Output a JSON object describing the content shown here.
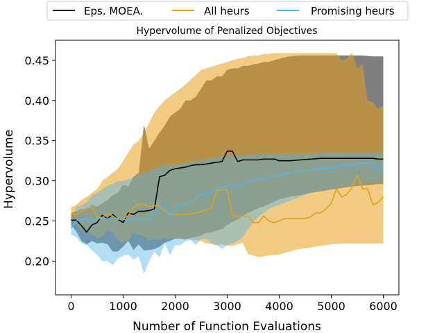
{
  "chart_data": {
    "type": "line",
    "title": "Hypervolume of Penalized Objectives",
    "xlabel": "Number of Function Evaluations",
    "ylabel": "Hypervolume",
    "xlim": [
      -300,
      6300
    ],
    "ylim": [
      0.158,
      0.475
    ],
    "xticks": [
      0,
      1000,
      2000,
      3000,
      4000,
      5000,
      6000
    ],
    "yticks": [
      0.2,
      0.25,
      0.3,
      0.35,
      0.4,
      0.45
    ],
    "xtick_labels": [
      "0",
      "1000",
      "2000",
      "3000",
      "4000",
      "5000",
      "6000"
    ],
    "ytick_labels": [
      "0.20",
      "0.25",
      "0.30",
      "0.35",
      "0.40",
      "0.45"
    ],
    "legend": {
      "position": "top-center-outside",
      "columns": 3
    },
    "grid": false,
    "series": [
      {
        "name": "Eps. MOEA.",
        "color": "#000000",
        "band_color": "#000000",
        "band_opacity": 0.5,
        "x": [
          0,
          100,
          200,
          300,
          400,
          500,
          600,
          700,
          800,
          900,
          1000,
          1100,
          1200,
          1300,
          1400,
          1500,
          1600,
          1700,
          1800,
          1900,
          2000,
          2100,
          2200,
          2300,
          2400,
          2500,
          2600,
          2700,
          2800,
          2900,
          3000,
          3100,
          3200,
          3300,
          3400,
          3500,
          3600,
          3700,
          3800,
          3900,
          4000,
          4200,
          4400,
          4600,
          4800,
          5000,
          5200,
          5400,
          5600,
          5800,
          5900,
          6000
        ],
        "mean": [
          0.251,
          0.251,
          0.244,
          0.236,
          0.245,
          0.248,
          0.257,
          0.253,
          0.258,
          0.252,
          0.248,
          0.26,
          0.258,
          0.262,
          0.262,
          0.263,
          0.265,
          0.305,
          0.307,
          0.313,
          0.315,
          0.316,
          0.317,
          0.319,
          0.32,
          0.32,
          0.321,
          0.322,
          0.323,
          0.324,
          0.337,
          0.337,
          0.324,
          0.326,
          0.326,
          0.326,
          0.326,
          0.327,
          0.327,
          0.327,
          0.325,
          0.325,
          0.326,
          0.327,
          0.328,
          0.328,
          0.328,
          0.328,
          0.328,
          0.328,
          0.327,
          0.327
        ],
        "lower": [
          0.245,
          0.237,
          0.225,
          0.221,
          0.225,
          0.222,
          0.223,
          0.221,
          0.212,
          0.212,
          0.218,
          0.225,
          0.214,
          0.221,
          0.213,
          0.214,
          0.215,
          0.218,
          0.223,
          0.225,
          0.228,
          0.228,
          0.227,
          0.229,
          0.23,
          0.232,
          0.235,
          0.236,
          0.238,
          0.24,
          0.245,
          0.249,
          0.252,
          0.256,
          0.26,
          0.263,
          0.266,
          0.268,
          0.271,
          0.274,
          0.277,
          0.28,
          0.282,
          0.285,
          0.287,
          0.289,
          0.291,
          0.293,
          0.294,
          0.295,
          0.296,
          0.296
        ],
        "upper": [
          0.26,
          0.262,
          0.265,
          0.265,
          0.27,
          0.268,
          0.272,
          0.276,
          0.282,
          0.285,
          0.295,
          0.293,
          0.305,
          0.31,
          0.37,
          0.34,
          0.35,
          0.36,
          0.369,
          0.38,
          0.385,
          0.39,
          0.4,
          0.4,
          0.405,
          0.415,
          0.425,
          0.425,
          0.43,
          0.43,
          0.438,
          0.44,
          0.44,
          0.443,
          0.443,
          0.445,
          0.446,
          0.448,
          0.448,
          0.45,
          0.452,
          0.455,
          0.456,
          0.456,
          0.456,
          0.456,
          0.456,
          0.456,
          0.456,
          0.455,
          0.455,
          0.455
        ]
      },
      {
        "name": "All heurs",
        "color": "#e5a01e",
        "band_color": "#e5a01e",
        "band_opacity": 0.55,
        "x": [
          0,
          100,
          200,
          300,
          400,
          500,
          600,
          700,
          800,
          900,
          1000,
          1100,
          1200,
          1300,
          1400,
          1500,
          1600,
          1700,
          1800,
          1900,
          2000,
          2200,
          2400,
          2500,
          2600,
          2700,
          2800,
          2900,
          3000,
          3100,
          3200,
          3300,
          3400,
          3500,
          3600,
          3700,
          3800,
          3900,
          4000,
          4100,
          4200,
          4300,
          4400,
          4500,
          4600,
          4700,
          4800,
          4900,
          5000,
          5100,
          5200,
          5300,
          5400,
          5500,
          5600,
          5700,
          5800,
          5900,
          6000
        ],
        "mean": [
          0.259,
          0.258,
          0.262,
          0.266,
          0.267,
          0.255,
          0.254,
          0.259,
          0.256,
          0.252,
          0.253,
          0.257,
          0.267,
          0.271,
          0.27,
          0.268,
          0.269,
          0.268,
          0.263,
          0.259,
          0.258,
          0.258,
          0.26,
          0.262,
          0.264,
          0.266,
          0.288,
          0.289,
          0.289,
          0.257,
          0.256,
          0.256,
          0.256,
          0.248,
          0.248,
          0.256,
          0.25,
          0.248,
          0.25,
          0.253,
          0.253,
          0.253,
          0.253,
          0.253,
          0.255,
          0.26,
          0.26,
          0.265,
          0.272,
          0.29,
          0.28,
          0.283,
          0.292,
          0.307,
          0.29,
          0.29,
          0.27,
          0.273,
          0.28
        ],
        "lower": [
          0.252,
          0.246,
          0.238,
          0.236,
          0.234,
          0.228,
          0.231,
          0.238,
          0.236,
          0.226,
          0.222,
          0.225,
          0.235,
          0.233,
          0.231,
          0.226,
          0.228,
          0.226,
          0.229,
          0.228,
          0.228,
          0.228,
          0.226,
          0.225,
          0.222,
          0.221,
          0.22,
          0.221,
          0.219,
          0.219,
          0.221,
          0.223,
          0.209,
          0.207,
          0.205,
          0.206,
          0.207,
          0.208,
          0.208,
          0.21,
          0.212,
          0.214,
          0.215,
          0.216,
          0.217,
          0.218,
          0.219,
          0.22,
          0.221,
          0.221,
          0.222,
          0.222,
          0.222,
          0.222,
          0.222,
          0.222,
          0.222,
          0.222,
          0.222
        ],
        "upper": [
          0.267,
          0.27,
          0.276,
          0.28,
          0.285,
          0.29,
          0.3,
          0.305,
          0.31,
          0.315,
          0.325,
          0.335,
          0.345,
          0.35,
          0.36,
          0.372,
          0.385,
          0.393,
          0.4,
          0.405,
          0.41,
          0.42,
          0.432,
          0.438,
          0.44,
          0.442,
          0.444,
          0.446,
          0.448,
          0.45,
          0.452,
          0.453,
          0.455,
          0.456,
          0.456,
          0.458,
          0.458,
          0.459,
          0.459,
          0.459,
          0.459,
          0.459,
          0.459,
          0.459,
          0.459,
          0.459,
          0.459,
          0.459,
          0.459,
          0.459,
          0.45,
          0.452,
          0.46,
          0.44,
          0.445,
          0.4,
          0.398,
          0.39,
          0.393
        ]
      },
      {
        "name": "Promising heurs",
        "color": "#56b4e9",
        "band_color": "#56b4e9",
        "band_opacity": 0.45,
        "x": [
          0,
          100,
          200,
          300,
          400,
          500,
          600,
          700,
          800,
          900,
          1000,
          1100,
          1200,
          1300,
          1400,
          1500,
          1600,
          1700,
          1800,
          1900,
          2000,
          2100,
          2200,
          2300,
          2400,
          2500,
          2600,
          2700,
          2800,
          2900,
          3000,
          3100,
          3200,
          3300,
          3400,
          3500,
          3600,
          3700,
          3800,
          3900,
          4000,
          4200,
          4400,
          4600,
          4800,
          5000,
          5200,
          5400,
          5600,
          5800,
          5900,
          6000
        ],
        "mean": [
          0.241,
          0.25,
          0.252,
          0.252,
          0.248,
          0.253,
          0.253,
          0.253,
          0.253,
          0.253,
          0.252,
          0.252,
          0.253,
          0.25,
          0.253,
          0.251,
          0.26,
          0.265,
          0.27,
          0.255,
          0.266,
          0.27,
          0.27,
          0.275,
          0.278,
          0.283,
          0.283,
          0.286,
          0.29,
          0.292,
          0.293,
          0.296,
          0.293,
          0.297,
          0.3,
          0.301,
          0.302,
          0.303,
          0.306,
          0.306,
          0.307,
          0.31,
          0.312,
          0.313,
          0.315,
          0.316,
          0.318,
          0.32,
          0.322,
          0.322,
          0.314,
          0.321
        ],
        "lower": [
          0.233,
          0.23,
          0.222,
          0.22,
          0.214,
          0.208,
          0.2,
          0.2,
          0.195,
          0.203,
          0.207,
          0.208,
          0.202,
          0.206,
          0.184,
          0.2,
          0.212,
          0.205,
          0.222,
          0.207,
          0.22,
          0.22,
          0.225,
          0.226,
          0.22,
          0.228,
          0.228,
          0.222,
          0.22,
          0.215,
          0.22,
          0.222,
          0.225,
          0.23,
          0.24,
          0.248,
          0.255,
          0.26,
          0.265,
          0.268,
          0.27,
          0.275,
          0.28,
          0.285,
          0.288,
          0.29,
          0.292,
          0.294,
          0.296,
          0.298,
          0.298,
          0.3
        ],
        "upper": [
          0.247,
          0.268,
          0.27,
          0.273,
          0.282,
          0.285,
          0.29,
          0.294,
          0.296,
          0.3,
          0.3,
          0.302,
          0.305,
          0.308,
          0.31,
          0.312,
          0.315,
          0.318,
          0.32,
          0.32,
          0.32,
          0.321,
          0.322,
          0.323,
          0.325,
          0.326,
          0.327,
          0.328,
          0.329,
          0.33,
          0.331,
          0.331,
          0.332,
          0.332,
          0.332,
          0.333,
          0.333,
          0.333,
          0.333,
          0.334,
          0.334,
          0.334,
          0.334,
          0.334,
          0.335,
          0.335,
          0.335,
          0.335,
          0.335,
          0.335,
          0.335,
          0.335
        ]
      }
    ]
  }
}
